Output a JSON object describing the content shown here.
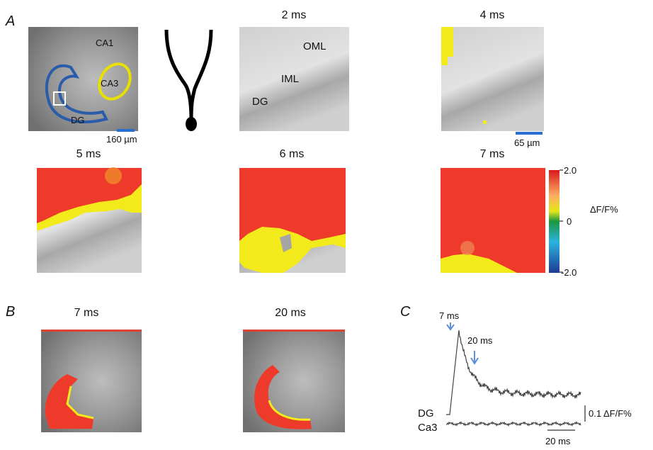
{
  "panel_a": {
    "letter": "A",
    "anatomy_labels": [
      "CA1",
      "CA3",
      "DG"
    ],
    "anatomy_scale": "160 µm",
    "frames": [
      {
        "time": "2 ms",
        "labels": [
          "OML",
          "IML",
          "DG"
        ]
      },
      {
        "time": "4 ms",
        "scale": "65 µm"
      },
      {
        "time": "5 ms"
      },
      {
        "time": "6 ms"
      },
      {
        "time": "7 ms"
      }
    ],
    "colorbar": {
      "label": "ΔF/F%",
      "ticks": [
        "2.0",
        "0",
        "-2.0"
      ]
    }
  },
  "panel_b": {
    "letter": "B",
    "frames": [
      "7 ms",
      "20 ms"
    ]
  },
  "panel_c": {
    "letter": "C",
    "markers": [
      "7 ms",
      "20 ms"
    ],
    "traces": [
      "DG",
      "Ca3"
    ],
    "amplitude_scale": "0.1 ΔF/F%",
    "time_scale": "20 ms"
  }
}
